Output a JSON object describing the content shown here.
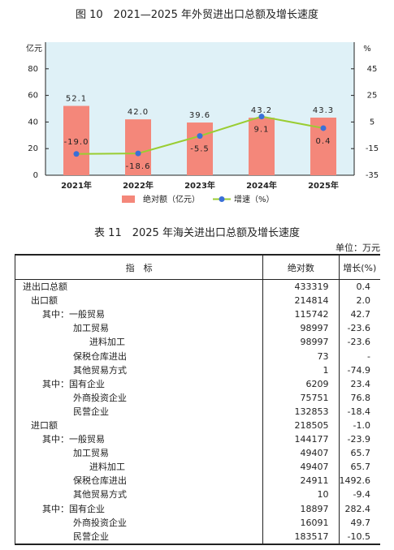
{
  "chart_data": {
    "type": "bar_line",
    "title": "图 10　2021—2025 年外贸进出口总额及增长速度",
    "ylabel": "亿元",
    "y2label": "%",
    "categories": [
      "2021年",
      "2022年",
      "2023年",
      "2024年",
      "2025年"
    ],
    "series": [
      {
        "name": "绝对额（亿元）",
        "type": "bar",
        "color": "#f4877a",
        "values": [
          52.1,
          42.0,
          39.6,
          43.2,
          43.3
        ],
        "value_labels": [
          "52.1",
          "42.0",
          "39.6",
          "43.2",
          "43.3"
        ]
      },
      {
        "name": "增速（%）",
        "type": "line",
        "axis": "y2",
        "color": "#9acd32",
        "marker_color": "#3a6fd8",
        "values": [
          -19.0,
          -18.6,
          -5.5,
          9.1,
          0.4
        ],
        "value_labels": [
          "-19.0",
          "-18.6",
          "-5.5",
          "9.1",
          "0.4"
        ]
      }
    ],
    "ylim": [
      0,
      100
    ],
    "yticks": [
      0,
      20,
      40,
      60,
      80
    ],
    "y2lim": [
      -35,
      65
    ],
    "y2ticks": [
      -35,
      -15,
      5,
      25,
      45
    ],
    "background": "#dff1f7"
  },
  "table": {
    "title": "表 11　2025 年海关进出口总额及增长速度",
    "unit": "单位：万元",
    "headers": [
      "指　标",
      "绝对数",
      "增长(%)"
    ],
    "rows": [
      [
        "进出口总额",
        "433319",
        "0.4"
      ],
      [
        "出口额",
        "214814",
        "2.0"
      ],
      [
        "其中：一般贸易",
        "115742",
        "42.7"
      ],
      [
        "加工贸易",
        "98997",
        "-23.6"
      ],
      [
        "进料加工",
        "98997",
        "-23.6"
      ],
      [
        "保税仓库进出",
        "73",
        "-"
      ],
      [
        "其他贸易方式",
        "1",
        "-74.9"
      ],
      [
        "其中：国有企业",
        "6209",
        "23.4"
      ],
      [
        "外商投资企业",
        "75751",
        "76.8"
      ],
      [
        "民营企业",
        "132853",
        "-18.4"
      ],
      [
        "进口额",
        "218505",
        "-1.0"
      ],
      [
        "其中：一般贸易",
        "144177",
        "-23.9"
      ],
      [
        "加工贸易",
        "49407",
        "65.7"
      ],
      [
        "进料加工",
        "49407",
        "65.7"
      ],
      [
        "保税仓库进出",
        "24911",
        "1492.6"
      ],
      [
        "其他贸易方式",
        "10",
        "-9.4"
      ],
      [
        "其中：国有企业",
        "18897",
        "282.4"
      ],
      [
        "外商投资企业",
        "16091",
        "49.7"
      ],
      [
        "民营企业",
        "183517",
        "-10.5"
      ]
    ]
  }
}
